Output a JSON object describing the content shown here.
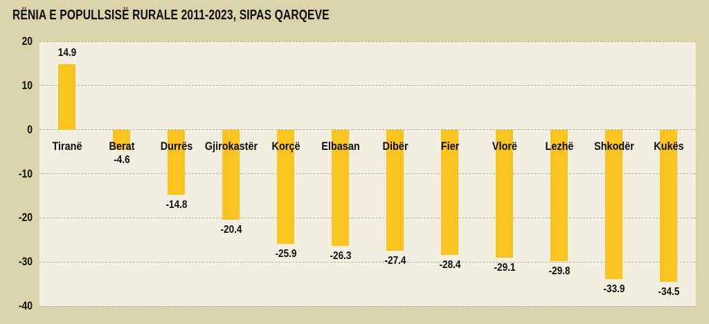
{
  "chart_data": {
    "type": "bar",
    "title": "RËNIA E POPULLSISË RURALE 2011-2023, SIPAS QARQEVE",
    "categories": [
      "Tiranë",
      "Berat",
      "Durrës",
      "Gjirokastër",
      "Korçë",
      "Elbasan",
      "Dibër",
      "Fier",
      "Vlorë",
      "Lezhë",
      "Shkodër",
      "Kukës"
    ],
    "values": [
      14.9,
      -4.6,
      -14.8,
      -20.4,
      -25.9,
      -26.3,
      -27.4,
      -28.4,
      -29.1,
      -29.8,
      -33.9,
      -34.5
    ],
    "value_labels": [
      "14.9",
      "-4.6",
      "-14.8",
      "-20.4",
      "-25.9",
      "-26.3",
      "-27.4",
      "-28.4",
      "-29.1",
      "-29.8",
      "-33.9",
      "-34.5"
    ],
    "xlabel": "",
    "ylabel": "",
    "ylim": [
      -40,
      20
    ],
    "yticks": [
      20,
      10,
      0,
      -10,
      -20,
      -30,
      -40
    ],
    "ytick_labels": [
      "20",
      "10",
      "0",
      "-10",
      "-20",
      "-30",
      "-40"
    ],
    "grid": "horizontal dashed",
    "legend": "none"
  },
  "colors": {
    "page_background": "#dbd4aa",
    "plot_background": "#f2efe1",
    "bar": "#f9c41f",
    "gridline": "#b8b3a0",
    "text": "#0d0d0d"
  }
}
